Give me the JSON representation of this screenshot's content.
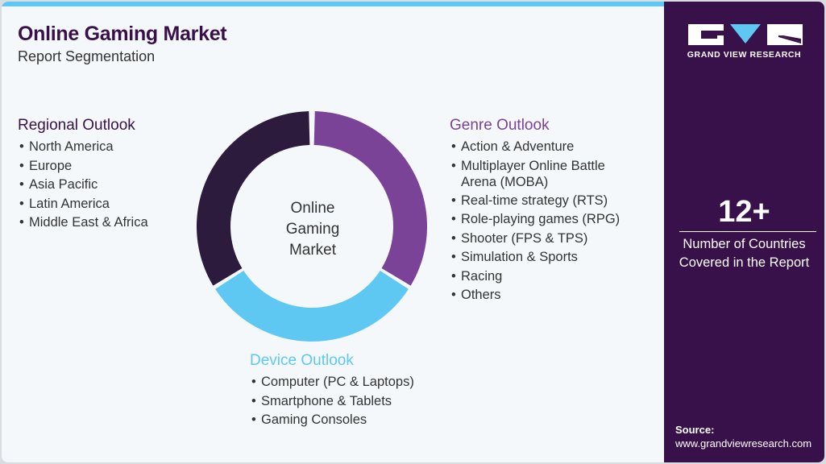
{
  "header": {
    "title": "Online Gaming Market",
    "subtitle": "Report Segmentation"
  },
  "center_label": [
    "Online",
    "Gaming",
    "Market"
  ],
  "colors": {
    "regional": "#2d1b3e",
    "genre": "#7b4397",
    "device": "#5ec8f2",
    "panel": "#38114a",
    "accent": "#5ec8f2"
  },
  "regional": {
    "title": "Regional Outlook",
    "items": [
      "North America",
      "Europe",
      "Asia Pacific",
      "Latin America",
      "Middle East & Africa"
    ]
  },
  "genre": {
    "title": "Genre Outlook",
    "items": [
      "Action & Adventure",
      "Multiplayer Online Battle Arena (MOBA)",
      "Real-time strategy (RTS)",
      "Role-playing games (RPG)",
      "Shooter (FPS & TPS)",
      "Simulation & Sports",
      "Racing",
      "Others"
    ]
  },
  "device": {
    "title": "Device Outlook",
    "items": [
      "Computer (PC & Laptops)",
      "Smartphone & Tablets",
      "Gaming Consoles"
    ]
  },
  "sidebar": {
    "logo_text": "GRAND VIEW RESEARCH",
    "stat_value": "12+",
    "stat_label_1": "Number of Countries",
    "stat_label_2": "Covered in the Report",
    "source_label": "Source:",
    "source_url": "www.grandviewresearch.com"
  }
}
